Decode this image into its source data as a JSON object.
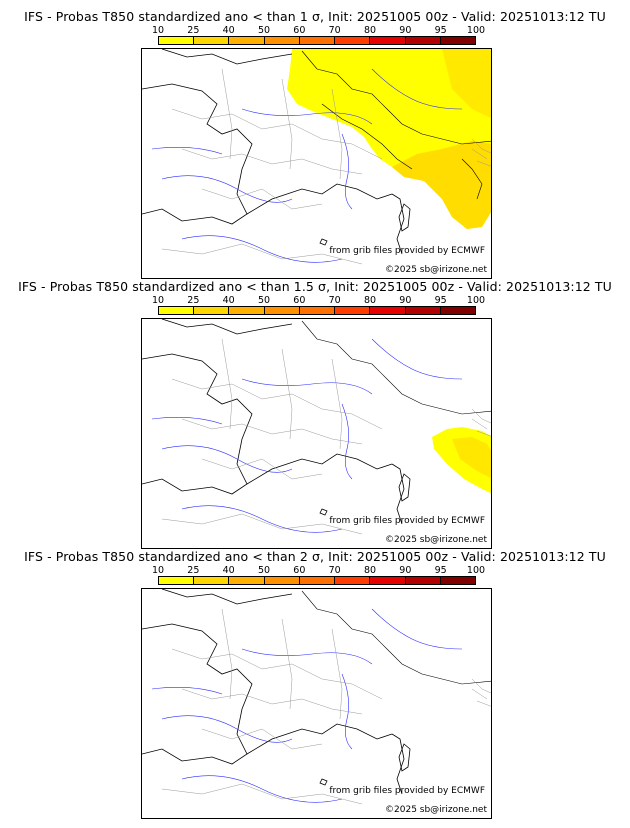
{
  "colorscale": {
    "labels": [
      "10",
      "25",
      "40",
      "50",
      "60",
      "70",
      "80",
      "90",
      "95",
      "100"
    ],
    "colors": [
      "#ffff00",
      "#ffd700",
      "#ffb000",
      "#ff9100",
      "#ff7000",
      "#ff3d00",
      "#e60000",
      "#b30000",
      "#800000"
    ]
  },
  "panels": [
    {
      "title": "IFS - Probas T850  standardized ano < than 1 σ, Init: 20251005 00z - Valid: 20251013:12 TU",
      "credit_grib": "from grib files provided by ECMWF",
      "credit_copyright": "©2025 sb@irizone.net"
    },
    {
      "title": "IFS - Probas T850  standardized ano < than 1.5 σ, Init: 20251005 00z - Valid: 20251013:12 TU",
      "credit_grib": "from grib files provided by ECMWF",
      "credit_copyright": "©2025 sb@irizone.net"
    },
    {
      "title": "IFS - Probas T850  standardized ano < than 2 σ, Init: 20251005 00z - Valid: 20251013:12 TU",
      "credit_grib": "from grib files provided by ECMWF",
      "credit_copyright": "©2025 sb@irizone.net"
    }
  ]
}
